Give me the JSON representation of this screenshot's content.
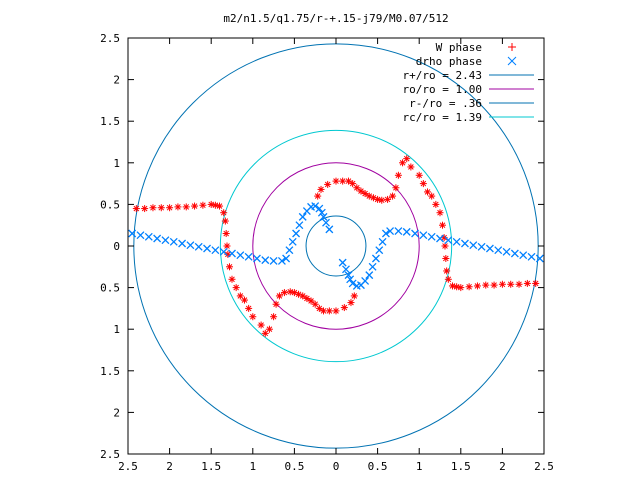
{
  "chart_data": {
    "type": "scatter",
    "title": "m2/n1.5/q1.75/r-+.15-j79/M0.07/512",
    "xlim": [
      -2.5,
      2.5
    ],
    "ylim": [
      -2.5,
      2.5
    ],
    "x_ticks": [
      {
        "value": -2.5,
        "label": "2.5"
      },
      {
        "value": -2,
        "label": "2"
      },
      {
        "value": -1.5,
        "label": "1.5"
      },
      {
        "value": -1,
        "label": "1"
      },
      {
        "value": -0.5,
        "label": "0.5"
      },
      {
        "value": 0,
        "label": "0"
      },
      {
        "value": 0.5,
        "label": "0.5"
      },
      {
        "value": 1,
        "label": "1"
      },
      {
        "value": 1.5,
        "label": "1.5"
      },
      {
        "value": 2,
        "label": "2"
      },
      {
        "value": 2.5,
        "label": "2.5"
      }
    ],
    "y_ticks": [
      {
        "value": 2.5,
        "label": "2.5"
      },
      {
        "value": 2,
        "label": "2"
      },
      {
        "value": 1.5,
        "label": "1.5"
      },
      {
        "value": 1,
        "label": "1"
      },
      {
        "value": 0.5,
        "label": "0.5"
      },
      {
        "value": 0,
        "label": "0"
      },
      {
        "value": -0.5,
        "label": "0.5"
      },
      {
        "value": -1,
        "label": "1"
      },
      {
        "value": -1.5,
        "label": "1.5"
      },
      {
        "value": -2,
        "label": "2"
      },
      {
        "value": -2.5,
        "label": "2.5"
      }
    ],
    "grid": false,
    "legend_position": "top-right",
    "series": [
      {
        "name": "W phase",
        "marker": "+",
        "color": "#ff0000",
        "points": [
          [
            -2.4,
            0.45
          ],
          [
            -2.3,
            0.45
          ],
          [
            -2.2,
            0.46
          ],
          [
            -2.1,
            0.46
          ],
          [
            -2.0,
            0.46
          ],
          [
            -1.9,
            0.47
          ],
          [
            -1.8,
            0.47
          ],
          [
            -1.7,
            0.48
          ],
          [
            -1.6,
            0.49
          ],
          [
            -1.5,
            0.5
          ],
          [
            -1.45,
            0.49
          ],
          [
            -1.4,
            0.48
          ],
          [
            -1.35,
            0.4
          ],
          [
            -1.33,
            0.3
          ],
          [
            -1.32,
            0.15
          ],
          [
            -1.31,
            0.0
          ],
          [
            -1.3,
            -0.1
          ],
          [
            -1.28,
            -0.25
          ],
          [
            -1.25,
            -0.4
          ],
          [
            -1.2,
            -0.5
          ],
          [
            -1.15,
            -0.6
          ],
          [
            -1.1,
            -0.65
          ],
          [
            -1.05,
            -0.75
          ],
          [
            -1.0,
            -0.85
          ],
          [
            -0.9,
            -0.95
          ],
          [
            -0.85,
            -1.05
          ],
          [
            -0.8,
            -1.0
          ],
          [
            -0.75,
            -0.85
          ],
          [
            -0.72,
            -0.7
          ],
          [
            -0.68,
            -0.6
          ],
          [
            -0.62,
            -0.56
          ],
          [
            -0.55,
            -0.55
          ],
          [
            -0.5,
            -0.56
          ],
          [
            -0.45,
            -0.58
          ],
          [
            -0.4,
            -0.6
          ],
          [
            -0.35,
            -0.63
          ],
          [
            -0.3,
            -0.66
          ],
          [
            -0.25,
            -0.7
          ],
          [
            -0.2,
            -0.75
          ],
          [
            -0.15,
            -0.78
          ],
          [
            -0.08,
            -0.78
          ],
          [
            0.0,
            -0.78
          ],
          [
            0.1,
            -0.74
          ],
          [
            0.18,
            -0.68
          ],
          [
            0.22,
            -0.6
          ],
          [
            2.4,
            -0.45
          ],
          [
            2.3,
            -0.45
          ],
          [
            2.2,
            -0.46
          ],
          [
            2.1,
            -0.46
          ],
          [
            2.0,
            -0.46
          ],
          [
            1.9,
            -0.47
          ],
          [
            1.8,
            -0.47
          ],
          [
            1.7,
            -0.48
          ],
          [
            1.6,
            -0.49
          ],
          [
            1.5,
            -0.5
          ],
          [
            1.45,
            -0.49
          ],
          [
            1.4,
            -0.48
          ],
          [
            1.35,
            -0.4
          ],
          [
            1.33,
            -0.3
          ],
          [
            1.32,
            -0.15
          ],
          [
            1.31,
            0.0
          ],
          [
            1.3,
            0.1
          ],
          [
            1.28,
            0.25
          ],
          [
            1.25,
            0.4
          ],
          [
            1.2,
            0.5
          ],
          [
            1.15,
            0.6
          ],
          [
            1.1,
            0.65
          ],
          [
            1.05,
            0.75
          ],
          [
            1.0,
            0.85
          ],
          [
            0.9,
            0.95
          ],
          [
            0.85,
            1.05
          ],
          [
            0.8,
            1.0
          ],
          [
            0.75,
            0.85
          ],
          [
            0.72,
            0.7
          ],
          [
            0.68,
            0.6
          ],
          [
            0.62,
            0.56
          ],
          [
            0.55,
            0.55
          ],
          [
            0.5,
            0.56
          ],
          [
            0.45,
            0.58
          ],
          [
            0.4,
            0.6
          ],
          [
            0.35,
            0.63
          ],
          [
            0.3,
            0.66
          ],
          [
            0.25,
            0.7
          ],
          [
            0.2,
            0.75
          ],
          [
            0.15,
            0.78
          ],
          [
            0.08,
            0.78
          ],
          [
            0.0,
            0.78
          ],
          [
            -0.1,
            0.74
          ],
          [
            -0.18,
            0.68
          ],
          [
            -0.22,
            0.6
          ]
        ]
      },
      {
        "name": "drho phase",
        "marker": "x",
        "color": "#0080ff",
        "points": [
          [
            -2.45,
            0.15
          ],
          [
            -2.35,
            0.13
          ],
          [
            -2.25,
            0.11
          ],
          [
            -2.15,
            0.09
          ],
          [
            -2.05,
            0.07
          ],
          [
            -1.95,
            0.05
          ],
          [
            -1.85,
            0.03
          ],
          [
            -1.75,
            0.01
          ],
          [
            -1.65,
            -0.01
          ],
          [
            -1.55,
            -0.03
          ],
          [
            -1.45,
            -0.05
          ],
          [
            -1.35,
            -0.07
          ],
          [
            -1.25,
            -0.09
          ],
          [
            -1.15,
            -0.11
          ],
          [
            -1.05,
            -0.13
          ],
          [
            -0.95,
            -0.15
          ],
          [
            -0.85,
            -0.17
          ],
          [
            -0.75,
            -0.18
          ],
          [
            -0.65,
            -0.18
          ],
          [
            -0.6,
            -0.15
          ],
          [
            -0.56,
            -0.05
          ],
          [
            -0.52,
            0.05
          ],
          [
            -0.48,
            0.15
          ],
          [
            -0.44,
            0.25
          ],
          [
            -0.4,
            0.35
          ],
          [
            -0.35,
            0.42
          ],
          [
            -0.3,
            0.47
          ],
          [
            -0.25,
            0.48
          ],
          [
            -0.2,
            0.45
          ],
          [
            -0.17,
            0.4
          ],
          [
            -0.15,
            0.35
          ],
          [
            -0.12,
            0.28
          ],
          [
            -0.08,
            0.2
          ],
          [
            2.45,
            -0.15
          ],
          [
            2.35,
            -0.13
          ],
          [
            2.25,
            -0.11
          ],
          [
            2.15,
            -0.09
          ],
          [
            2.05,
            -0.07
          ],
          [
            1.95,
            -0.05
          ],
          [
            1.85,
            -0.03
          ],
          [
            1.75,
            -0.01
          ],
          [
            1.65,
            0.01
          ],
          [
            1.55,
            0.03
          ],
          [
            1.45,
            0.05
          ],
          [
            1.35,
            0.07
          ],
          [
            1.25,
            0.09
          ],
          [
            1.15,
            0.11
          ],
          [
            1.05,
            0.13
          ],
          [
            0.95,
            0.15
          ],
          [
            0.85,
            0.17
          ],
          [
            0.75,
            0.18
          ],
          [
            0.65,
            0.18
          ],
          [
            0.6,
            0.15
          ],
          [
            0.56,
            0.05
          ],
          [
            0.52,
            -0.05
          ],
          [
            0.48,
            -0.15
          ],
          [
            0.44,
            -0.25
          ],
          [
            0.4,
            -0.35
          ],
          [
            0.35,
            -0.42
          ],
          [
            0.3,
            -0.47
          ],
          [
            0.25,
            -0.48
          ],
          [
            0.2,
            -0.45
          ],
          [
            0.17,
            -0.4
          ],
          [
            0.15,
            -0.35
          ],
          [
            0.12,
            -0.28
          ],
          [
            0.08,
            -0.2
          ]
        ]
      },
      {
        "name": "r+/ro = 2.43",
        "type": "circle",
        "radius": 2.43,
        "color": "#0072b2"
      },
      {
        "name": "ro/ro = 1.00",
        "type": "circle",
        "radius": 1.0,
        "color": "#a000a0"
      },
      {
        "name": "r-/ro = .36",
        "type": "circle",
        "radius": 0.36,
        "color": "#0072b2"
      },
      {
        "name": "rc/ro = 1.39",
        "type": "circle",
        "radius": 1.39,
        "color": "#00c8d0"
      }
    ]
  }
}
